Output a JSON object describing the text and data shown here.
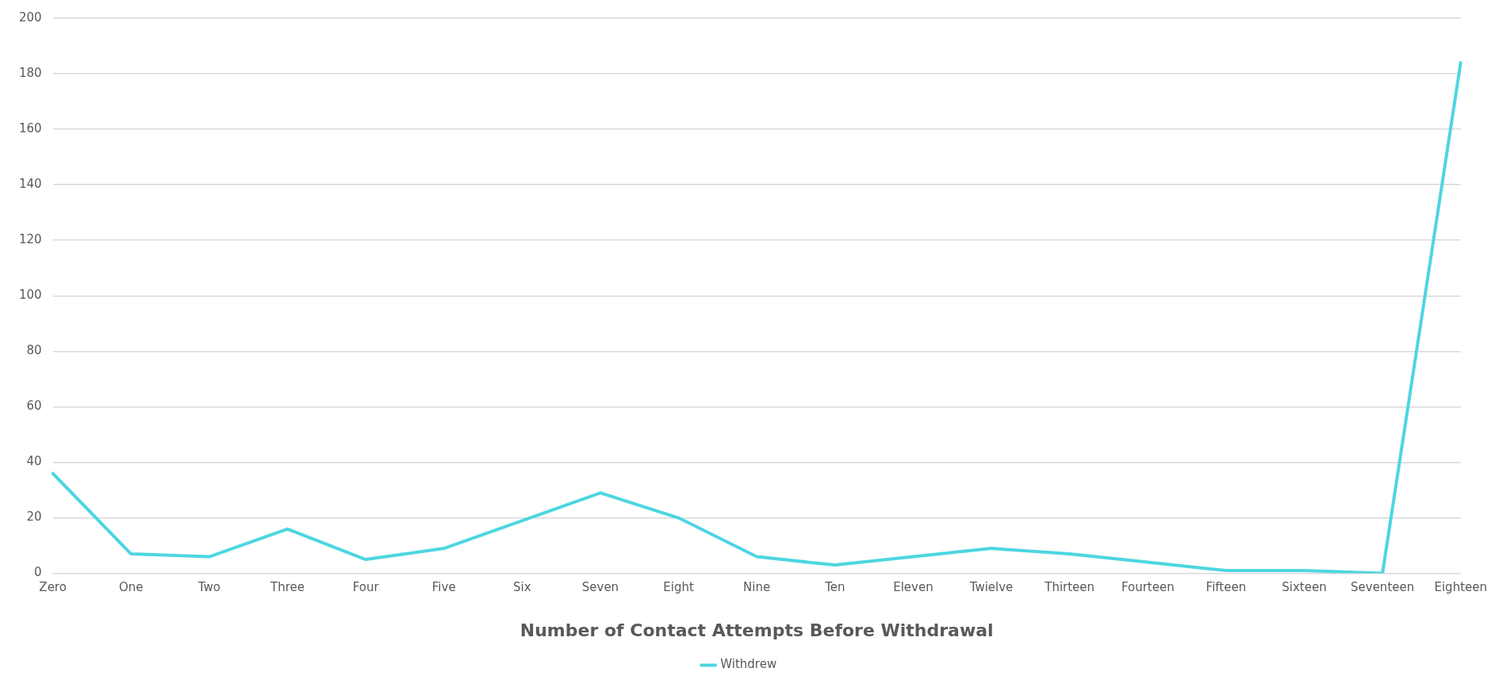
{
  "chart_data": {
    "type": "line",
    "xlabel": "Number of Contact Attempts Before Withdrawal",
    "categories": [
      "Zero",
      "One",
      "Two",
      "Three",
      "Four",
      "Five",
      "Six",
      "Seven",
      "Eight",
      "Nine",
      "Ten",
      "Eleven",
      "Twielve",
      "Thirteen",
      "Fourteen",
      "Fifteen",
      "Sixteen",
      "Seventeen",
      "Eighteen"
    ],
    "series": [
      {
        "name": "Withdrew",
        "color": "#4dd6e0",
        "values": [
          36,
          7,
          6,
          16,
          5,
          9,
          19,
          29,
          20,
          6,
          3,
          6,
          9,
          7,
          4,
          1,
          1,
          0,
          184
        ]
      }
    ],
    "ylim": [
      0,
      200
    ],
    "yticks": [
      0,
      20,
      40,
      60,
      80,
      100,
      120,
      140,
      160,
      180,
      200
    ],
    "grid": "y",
    "legend": "bottom",
    "marker": "none",
    "line_style": "solid"
  }
}
